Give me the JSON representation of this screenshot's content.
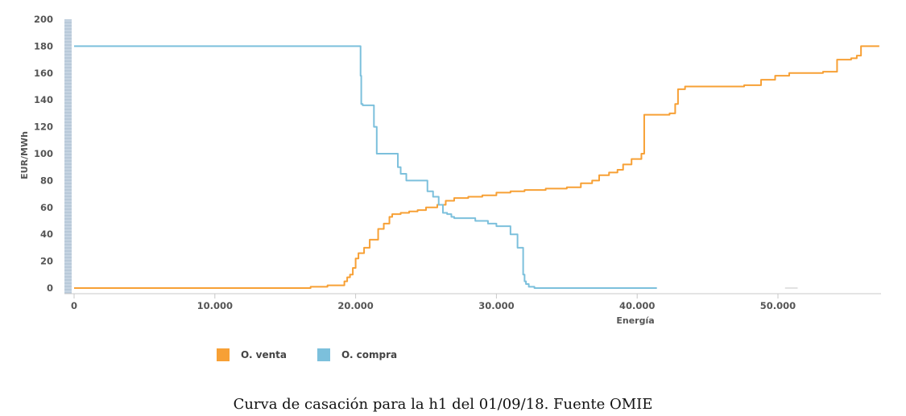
{
  "caption": "Curva de casación para la h1 del 01/09/18. Fuente OMIE",
  "chart_data": {
    "type": "line",
    "xlabel": "Energía",
    "ylabel": "EUR/MWh",
    "xlim": [
      -800,
      57200
    ],
    "ylim": [
      0,
      200
    ],
    "x_ticks": [
      0,
      10000,
      20000,
      30000,
      40000,
      50000
    ],
    "x_tick_labels": [
      "0",
      "10.000",
      "20.000",
      "30.000",
      "40.000",
      "50.000"
    ],
    "y_ticks": [
      0,
      20,
      40,
      60,
      80,
      100,
      120,
      140,
      160,
      180,
      200
    ],
    "y_tick_labels": [
      "0",
      "20",
      "40",
      "60",
      "80",
      "100",
      "120",
      "140",
      "160",
      "180",
      "200"
    ],
    "grid": false,
    "legend_position": "bottom-left",
    "series": [
      {
        "name": "O. venta",
        "color": "#f7a035",
        "step": true,
        "x": [
          0,
          15500,
          16800,
          18000,
          19200,
          19400,
          19600,
          19800,
          20000,
          20200,
          20600,
          21000,
          21600,
          22000,
          22400,
          22600,
          23200,
          23800,
          24400,
          25000,
          25800,
          26400,
          27000,
          28000,
          29000,
          30000,
          31000,
          32000,
          33500,
          35000,
          36000,
          36800,
          37300,
          38000,
          38600,
          39000,
          39600,
          40300,
          40500,
          42300,
          42700,
          42900,
          43400,
          47600,
          48800,
          49800,
          50800,
          53200,
          54200,
          55200,
          55600,
          55900,
          57200
        ],
        "y": [
          0,
          0,
          1,
          2,
          5,
          8,
          10,
          15,
          22,
          26,
          30,
          36,
          44,
          48,
          53,
          55,
          56,
          57,
          58,
          60,
          62,
          65,
          67,
          68,
          69,
          71,
          72,
          73,
          74,
          75,
          78,
          80,
          84,
          86,
          88,
          92,
          96,
          100,
          129,
          130,
          137,
          148,
          150,
          151,
          155,
          158,
          160,
          161,
          170,
          171,
          173,
          180,
          180
        ]
      },
      {
        "name": "O. compra",
        "color": "#7cc0dc",
        "step": true,
        "x": [
          0,
          20200,
          20350,
          20400,
          20500,
          21300,
          21500,
          21600,
          23000,
          23200,
          23600,
          24000,
          25100,
          25500,
          25900,
          26200,
          26500,
          26800,
          27000,
          27600,
          28500,
          29400,
          30000,
          31000,
          31500,
          31900,
          32000,
          32100,
          32300,
          32700,
          41400
        ],
        "y": [
          180,
          180,
          158,
          137,
          136,
          120,
          100,
          100,
          90,
          85,
          80,
          80,
          72,
          68,
          62,
          56,
          55,
          53,
          52,
          52,
          50,
          48,
          46,
          40,
          30,
          10,
          5,
          3,
          1,
          0,
          0
        ]
      }
    ],
    "extra_segment_note": ""
  }
}
